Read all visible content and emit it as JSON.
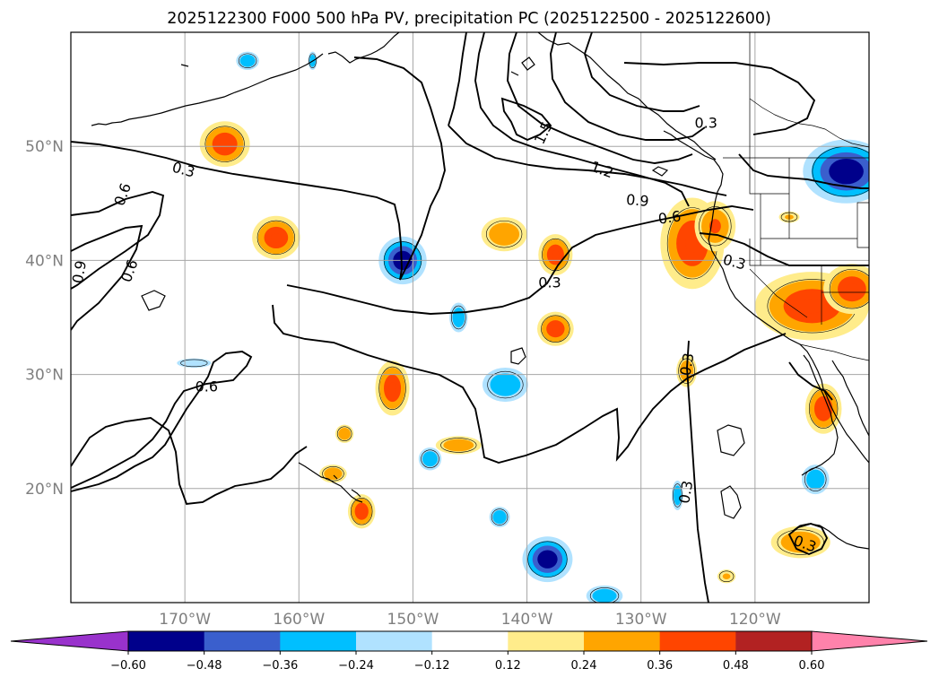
{
  "title": "2025122300 F000 500 hPa PV, precipitation PC (2025122500 - 2025122600)",
  "map": {
    "lon_range": [
      -180,
      -110
    ],
    "lat_range": [
      10,
      60
    ],
    "lat_ticks": [
      {
        "lat": 50,
        "label": "50°N"
      },
      {
        "lat": 40,
        "label": "40°N"
      },
      {
        "lat": 30,
        "label": "30°N"
      },
      {
        "lat": 20,
        "label": "20°N"
      }
    ],
    "lon_ticks": [
      {
        "lon": -170,
        "label": "170°W"
      },
      {
        "lon": -160,
        "label": "160°W"
      },
      {
        "lon": -150,
        "label": "150°W"
      },
      {
        "lon": -140,
        "label": "140°W"
      },
      {
        "lon": -130,
        "label": "130°W"
      },
      {
        "lon": -120,
        "label": "120°W"
      }
    ],
    "contour_labels": [
      {
        "text": "0.3",
        "lon": -170.1,
        "lat": 48.0,
        "rot": 15
      },
      {
        "text": "0.6",
        "lon": -175.5,
        "lat": 45.8,
        "rot": -70
      },
      {
        "text": "0.6",
        "lon": -174.9,
        "lat": 39.1,
        "rot": -70
      },
      {
        "text": "0.9",
        "lon": -179.3,
        "lat": 39.0,
        "rot": -80
      },
      {
        "text": "0.6",
        "lon": -168.1,
        "lat": 29.0,
        "rot": 0
      },
      {
        "text": "1.5",
        "lon": -138.6,
        "lat": 51.2,
        "rot": -65
      },
      {
        "text": "1.2",
        "lon": -133.4,
        "lat": 48.0,
        "rot": 20
      },
      {
        "text": "0.9",
        "lon": -130.3,
        "lat": 45.3,
        "rot": 5
      },
      {
        "text": "0.6",
        "lon": -127.5,
        "lat": 43.8,
        "rot": -8
      },
      {
        "text": "0.3",
        "lon": -138.0,
        "lat": 38.1,
        "rot": 0
      },
      {
        "text": "0.3",
        "lon": -121.8,
        "lat": 39.9,
        "rot": 15
      },
      {
        "text": "0.3",
        "lon": -124.3,
        "lat": 52.1,
        "rot": 0
      },
      {
        "text": "0.3",
        "lon": -126.0,
        "lat": 30.9,
        "rot": -80
      },
      {
        "text": "0.3",
        "lon": -126.1,
        "lat": 19.7,
        "rot": -80
      },
      {
        "text": "0.3",
        "lon": -115.6,
        "lat": 15.2,
        "rot": 20
      }
    ],
    "precip_blobs": [
      {
        "lon": -166.5,
        "lat": 50.2,
        "rx": 2.2,
        "ry": 2.0,
        "value": 0.45
      },
      {
        "lon": -162.0,
        "lat": 42.0,
        "rx": 2.1,
        "ry": 1.9,
        "value": 0.44
      },
      {
        "lon": -151.8,
        "lat": 28.8,
        "rx": 1.5,
        "ry": 2.4,
        "value": 0.42
      },
      {
        "lon": -154.5,
        "lat": 18.0,
        "rx": 1.2,
        "ry": 1.5,
        "value": 0.42
      },
      {
        "lon": -142.0,
        "lat": 42.3,
        "rx": 2.0,
        "ry": 1.5,
        "value": 0.3
      },
      {
        "lon": -137.5,
        "lat": 40.5,
        "rx": 1.5,
        "ry": 1.8,
        "value": 0.4
      },
      {
        "lon": -137.5,
        "lat": 34.0,
        "rx": 1.6,
        "ry": 1.5,
        "value": 0.38
      },
      {
        "lon": -146.0,
        "lat": 23.8,
        "rx": 2.0,
        "ry": 0.8,
        "value": 0.3
      },
      {
        "lon": -157.0,
        "lat": 21.3,
        "rx": 1.2,
        "ry": 0.8,
        "value": 0.28
      },
      {
        "lon": -156.0,
        "lat": 24.8,
        "rx": 0.8,
        "ry": 0.8,
        "value": 0.26
      },
      {
        "lon": -125.5,
        "lat": 41.5,
        "rx": 2.8,
        "ry": 4.0,
        "value": 0.42
      },
      {
        "lon": -123.5,
        "lat": 43.0,
        "rx": 1.8,
        "ry": 2.2,
        "value": 0.36
      },
      {
        "lon": -115.0,
        "lat": 36.0,
        "rx": 5.0,
        "ry": 3.0,
        "value": 0.44
      },
      {
        "lon": -111.5,
        "lat": 37.5,
        "rx": 2.5,
        "ry": 2.2,
        "value": 0.42
      },
      {
        "lon": -114.0,
        "lat": 27.0,
        "rx": 1.6,
        "ry": 2.2,
        "value": 0.44
      },
      {
        "lon": -126.0,
        "lat": 30.3,
        "rx": 0.9,
        "ry": 1.4,
        "value": 0.3
      },
      {
        "lon": -116.0,
        "lat": 15.3,
        "rx": 2.6,
        "ry": 1.4,
        "value": 0.3
      },
      {
        "lon": -122.5,
        "lat": 12.3,
        "rx": 0.8,
        "ry": 0.6,
        "value": 0.24
      },
      {
        "lon": -117.0,
        "lat": 43.8,
        "rx": 0.9,
        "ry": 0.5,
        "value": 0.24
      },
      {
        "lon": -150.9,
        "lat": 40.0,
        "rx": 2.1,
        "ry": 2.1,
        "value": -0.5
      },
      {
        "lon": -112.0,
        "lat": 47.8,
        "rx": 3.8,
        "ry": 2.8,
        "value": -0.5
      },
      {
        "lon": -138.2,
        "lat": 13.8,
        "rx": 2.2,
        "ry": 2.0,
        "value": -0.5
      },
      {
        "lon": -141.9,
        "lat": 29.1,
        "rx": 2.0,
        "ry": 1.5,
        "value": -0.32
      },
      {
        "lon": -146.0,
        "lat": 35.0,
        "rx": 0.8,
        "ry": 1.3,
        "value": -0.3
      },
      {
        "lon": -148.5,
        "lat": 22.6,
        "rx": 1.0,
        "ry": 1.0,
        "value": -0.3
      },
      {
        "lon": -114.7,
        "lat": 20.8,
        "rx": 1.2,
        "ry": 1.3,
        "value": -0.3
      },
      {
        "lon": -142.4,
        "lat": 17.5,
        "rx": 0.9,
        "ry": 0.9,
        "value": -0.28
      },
      {
        "lon": -126.8,
        "lat": 19.4,
        "rx": 0.5,
        "ry": 1.3,
        "value": -0.28
      },
      {
        "lon": -133.2,
        "lat": 10.6,
        "rx": 1.6,
        "ry": 0.9,
        "value": -0.36
      },
      {
        "lon": -164.5,
        "lat": 57.5,
        "rx": 1.0,
        "ry": 0.8,
        "value": -0.3
      },
      {
        "lon": -169.2,
        "lat": 31.0,
        "rx": 1.5,
        "ry": 0.4,
        "value": -0.18
      },
      {
        "lon": -158.8,
        "lat": 57.5,
        "rx": 0.4,
        "ry": 0.8,
        "value": -0.26
      }
    ]
  },
  "colorbar": {
    "levels": [
      -0.6,
      -0.48,
      -0.36,
      -0.24,
      -0.12,
      0.12,
      0.24,
      0.36,
      0.48,
      0.6
    ],
    "labels": [
      "−0.60",
      "−0.48",
      "−0.36",
      "−0.24",
      "−0.12",
      "0.12",
      "0.24",
      "0.36",
      "0.48",
      "0.60"
    ],
    "colors": [
      "#9932cc",
      "#00008b",
      "#3a5fcd",
      "#00bfff",
      "#b0e2ff",
      "#ffffff",
      "#ffec8b",
      "#ffa500",
      "#ff4500",
      "#b22222",
      "#ff82ab"
    ]
  }
}
